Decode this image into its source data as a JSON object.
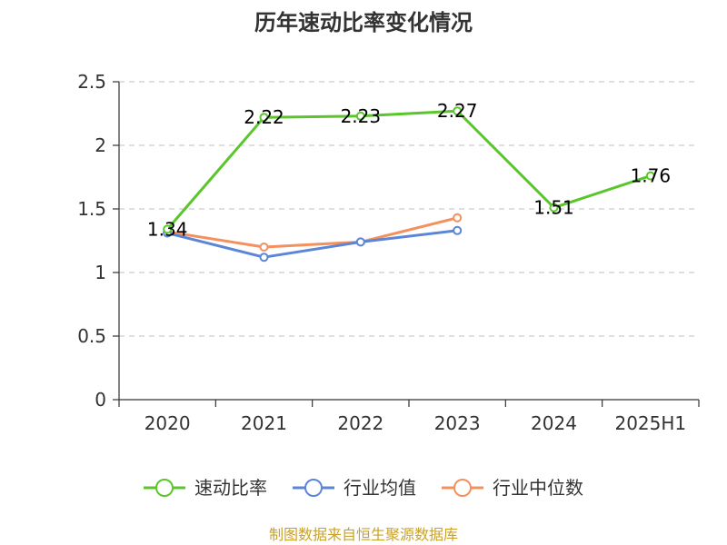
{
  "colors": {
    "background": "#ffffff",
    "grid": "#cccccc",
    "axis": "#333333",
    "source_text": "#c9a227"
  },
  "chart_data": {
    "type": "line",
    "title": "历年速动比率变化情况",
    "categories": [
      "2020",
      "2021",
      "2022",
      "2023",
      "2024",
      "2025H1"
    ],
    "y_ticks": [
      "0",
      "0.5",
      "1",
      "1.5",
      "2",
      "2.5"
    ],
    "ylim": [
      0,
      2.5
    ],
    "grid": true,
    "grid_style": "dashed",
    "legend_position": "bottom",
    "series": [
      {
        "name": "速动比率",
        "color": "#5ac62c",
        "show_labels": true,
        "values": [
          1.34,
          2.22,
          2.23,
          2.27,
          1.51,
          1.76
        ],
        "labels": [
          "1.34",
          "2.22",
          "2.23",
          "2.27",
          "1.51",
          "1.76"
        ]
      },
      {
        "name": "行业均值",
        "color": "#5b86d8",
        "show_labels": false,
        "values": [
          1.31,
          1.12,
          1.24,
          1.33,
          null,
          null
        ]
      },
      {
        "name": "行业中位数",
        "color": "#f3905e",
        "show_labels": false,
        "values": [
          1.32,
          1.2,
          1.24,
          1.43,
          null,
          null
        ]
      }
    ]
  },
  "footer": {
    "source": "制图数据来自恒生聚源数据库"
  }
}
